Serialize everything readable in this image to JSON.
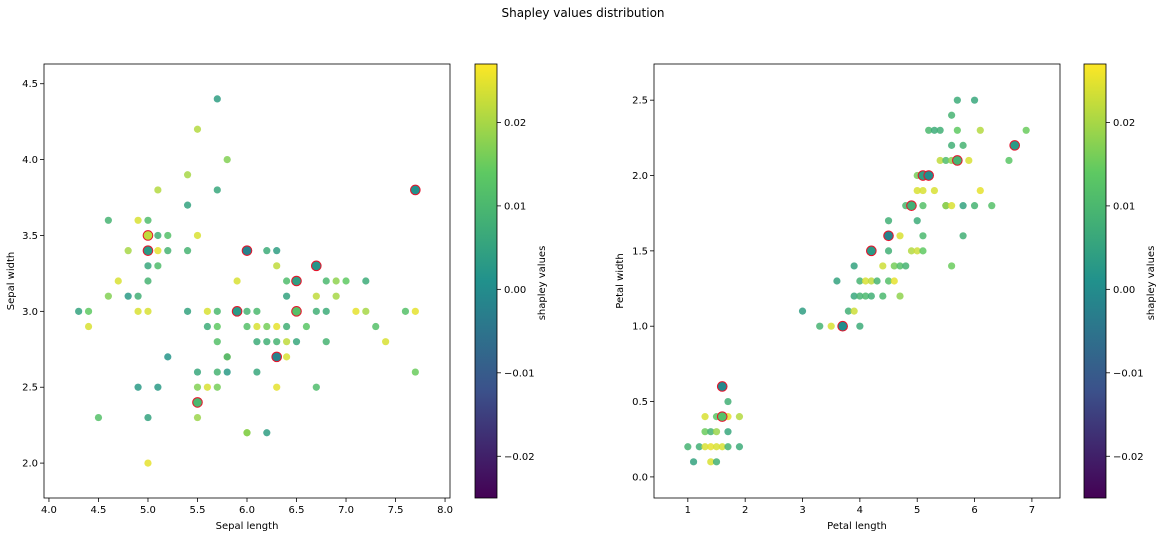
{
  "figure": {
    "suptitle": "Shapley values distribution"
  },
  "chart_data": [
    {
      "type": "scatter",
      "xlabel": "Sepal length",
      "ylabel": "Sepal width",
      "xlim": [
        3.95,
        8.05
      ],
      "ylim": [
        1.77,
        4.63
      ],
      "xticks": [
        "4.0",
        "4.5",
        "5.0",
        "5.5",
        "6.0",
        "6.5",
        "7.0",
        "7.5",
        "8.0"
      ],
      "yticks": [
        "2.0",
        "2.5",
        "3.0",
        "3.5",
        "4.0",
        "4.5"
      ],
      "colorbar": {
        "label": "shapley values",
        "range": [
          -0.025,
          0.027
        ],
        "ticks": [
          "0.02",
          "0.01",
          "0.00",
          "−0.01",
          "−0.02"
        ],
        "tick_values": [
          0.02,
          0.01,
          0.0,
          -0.01,
          -0.02
        ],
        "colormap": "viridis"
      },
      "points": [
        [
          4.3,
          3.0,
          0.005
        ],
        [
          4.4,
          3.0,
          0.014
        ],
        [
          4.4,
          2.9,
          0.024
        ],
        [
          4.5,
          2.3,
          0.012
        ],
        [
          4.6,
          3.6,
          0.009
        ],
        [
          4.6,
          3.1,
          0.017
        ],
        [
          4.7,
          3.2,
          0.024
        ],
        [
          4.8,
          3.4,
          0.02
        ],
        [
          4.8,
          3.1,
          0.003
        ],
        [
          4.9,
          3.0,
          0.024
        ],
        [
          4.9,
          3.6,
          0.024
        ],
        [
          4.9,
          3.1,
          0.008
        ],
        [
          4.9,
          2.5,
          0.003
        ],
        [
          5.0,
          3.6,
          0.011
        ],
        [
          5.0,
          3.3,
          0.006
        ],
        [
          5.0,
          3.2,
          0.009
        ],
        [
          5.0,
          3.0,
          0.024
        ],
        [
          5.0,
          2.3,
          0.005
        ],
        [
          5.0,
          2.0,
          0.025
        ],
        [
          5.1,
          3.8,
          0.021
        ],
        [
          5.1,
          3.5,
          0.008
        ],
        [
          5.1,
          3.4,
          0.025
        ],
        [
          5.1,
          3.3,
          0.011
        ],
        [
          5.1,
          2.5,
          0.003
        ],
        [
          5.2,
          3.5,
          0.012
        ],
        [
          5.2,
          3.4,
          0.009
        ],
        [
          5.2,
          2.7,
          0.002
        ],
        [
          5.4,
          3.9,
          0.02
        ],
        [
          5.4,
          3.7,
          0.005
        ],
        [
          5.4,
          3.4,
          0.009
        ],
        [
          5.4,
          3.0,
          0.005
        ],
        [
          5.5,
          4.2,
          0.021
        ],
        [
          5.5,
          3.5,
          0.024
        ],
        [
          5.5,
          2.6,
          0.006
        ],
        [
          5.5,
          2.5,
          0.017
        ],
        [
          5.5,
          2.3,
          0.019
        ],
        [
          5.6,
          3.0,
          0.024
        ],
        [
          5.6,
          2.9,
          0.007
        ],
        [
          5.6,
          2.5,
          0.024
        ],
        [
          5.7,
          4.4,
          0.004
        ],
        [
          5.7,
          3.8,
          0.006
        ],
        [
          5.7,
          3.0,
          0.01
        ],
        [
          5.7,
          2.9,
          0.014
        ],
        [
          5.7,
          2.8,
          0.012
        ],
        [
          5.7,
          2.6,
          0.009
        ],
        [
          5.7,
          2.5,
          0.016
        ],
        [
          5.8,
          4.0,
          0.017
        ],
        [
          5.8,
          2.7,
          0.024
        ],
        [
          5.8,
          2.7,
          0.009
        ],
        [
          5.8,
          2.6,
          0.003
        ],
        [
          5.9,
          3.2,
          0.024
        ],
        [
          6.0,
          3.0,
          0.009
        ],
        [
          6.0,
          2.9,
          0.012
        ],
        [
          6.0,
          2.2,
          0.021
        ],
        [
          6.0,
          2.2,
          0.017
        ],
        [
          6.1,
          3.0,
          0.01
        ],
        [
          6.1,
          2.9,
          0.024
        ],
        [
          6.1,
          2.8,
          0.007
        ],
        [
          6.1,
          2.6,
          0.006
        ],
        [
          6.2,
          3.4,
          0.007
        ],
        [
          6.2,
          2.9,
          0.016
        ],
        [
          6.2,
          2.8,
          0.008
        ],
        [
          6.2,
          2.2,
          0.004
        ],
        [
          6.3,
          3.4,
          0.004
        ],
        [
          6.3,
          3.3,
          0.022
        ],
        [
          6.3,
          2.9,
          0.025
        ],
        [
          6.3,
          2.8,
          0.009
        ],
        [
          6.3,
          2.5,
          0.025
        ],
        [
          6.4,
          3.2,
          0.011
        ],
        [
          6.4,
          3.1,
          0.005
        ],
        [
          6.4,
          2.9,
          0.008
        ],
        [
          6.4,
          2.8,
          0.022
        ],
        [
          6.4,
          2.7,
          0.024
        ],
        [
          6.5,
          3.0,
          0.012
        ],
        [
          6.5,
          2.8,
          0.006
        ],
        [
          6.6,
          2.9,
          0.013
        ],
        [
          6.7,
          3.1,
          0.022
        ],
        [
          6.7,
          3.0,
          0.008
        ],
        [
          6.7,
          2.5,
          0.011
        ],
        [
          6.8,
          3.2,
          0.01
        ],
        [
          6.8,
          3.0,
          0.007
        ],
        [
          6.8,
          2.8,
          0.009
        ],
        [
          6.9,
          3.2,
          0.018
        ],
        [
          6.9,
          3.1,
          0.02
        ],
        [
          7.0,
          3.2,
          0.014
        ],
        [
          7.1,
          3.0,
          0.025
        ],
        [
          7.2,
          3.2,
          0.007
        ],
        [
          7.2,
          3.0,
          0.02
        ],
        [
          7.3,
          2.9,
          0.012
        ],
        [
          7.4,
          2.8,
          0.024
        ],
        [
          7.6,
          3.0,
          0.012
        ],
        [
          7.7,
          3.0,
          0.025
        ],
        [
          7.7,
          2.6,
          0.015
        ],
        [
          7.7,
          3.8,
          0.018
        ]
      ],
      "highlighted": [
        [
          5.0,
          3.5,
          0.022
        ],
        [
          5.0,
          3.4,
          0.003
        ],
        [
          5.5,
          2.4,
          0.01
        ],
        [
          5.9,
          3.0,
          0.003
        ],
        [
          6.0,
          3.4,
          -0.002
        ],
        [
          6.3,
          2.7,
          -0.002
        ],
        [
          6.5,
          3.2,
          0.004
        ],
        [
          6.5,
          3.0,
          0.012
        ],
        [
          6.7,
          3.3,
          0.002
        ],
        [
          7.7,
          3.8,
          0.001
        ]
      ]
    },
    {
      "type": "scatter",
      "xlabel": "Petal length",
      "ylabel": "Petal width",
      "xlim": [
        0.41,
        7.49
      ],
      "ylim": [
        -0.14,
        2.74
      ],
      "xticks": [
        "1",
        "2",
        "3",
        "4",
        "5",
        "6",
        "7"
      ],
      "yticks": [
        "0.0",
        "0.5",
        "1.0",
        "1.5",
        "2.0",
        "2.5"
      ],
      "colorbar": {
        "label": "shapley values",
        "range": [
          -0.025,
          0.027
        ],
        "ticks": [
          "0.02",
          "0.01",
          "0.00",
          "−0.01",
          "−0.02"
        ],
        "tick_values": [
          0.02,
          0.01,
          0.0,
          -0.01,
          -0.02
        ],
        "colormap": "viridis"
      },
      "points": [
        [
          1.0,
          0.2,
          0.009
        ],
        [
          1.1,
          0.1,
          0.005
        ],
        [
          1.2,
          0.2,
          0.008
        ],
        [
          1.3,
          0.2,
          0.024
        ],
        [
          1.3,
          0.3,
          0.015
        ],
        [
          1.3,
          0.4,
          0.024
        ],
        [
          1.4,
          0.2,
          0.025
        ],
        [
          1.4,
          0.3,
          0.009
        ],
        [
          1.4,
          0.1,
          0.024
        ],
        [
          1.5,
          0.2,
          0.024
        ],
        [
          1.5,
          0.4,
          0.013
        ],
        [
          1.5,
          0.1,
          0.008
        ],
        [
          1.5,
          0.3,
          0.019
        ],
        [
          1.6,
          0.2,
          0.024
        ],
        [
          1.6,
          0.4,
          0.007
        ],
        [
          1.7,
          0.2,
          0.009
        ],
        [
          1.7,
          0.3,
          0.006
        ],
        [
          1.7,
          0.4,
          0.025
        ],
        [
          1.7,
          0.5,
          0.008
        ],
        [
          1.9,
          0.2,
          0.007
        ],
        [
          1.9,
          0.4,
          0.021
        ],
        [
          3.0,
          1.1,
          0.004
        ],
        [
          3.3,
          1.0,
          0.009
        ],
        [
          3.5,
          1.0,
          0.024
        ],
        [
          3.6,
          1.3,
          0.005
        ],
        [
          3.8,
          1.1,
          0.008
        ],
        [
          3.9,
          1.1,
          0.023
        ],
        [
          3.9,
          1.4,
          0.005
        ],
        [
          3.9,
          1.2,
          0.006
        ],
        [
          4.0,
          1.0,
          0.007
        ],
        [
          4.0,
          1.2,
          0.009
        ],
        [
          4.0,
          1.3,
          0.009
        ],
        [
          4.1,
          1.3,
          0.024
        ],
        [
          4.1,
          1.2,
          0.01
        ],
        [
          4.2,
          1.3,
          0.022
        ],
        [
          4.2,
          1.2,
          0.008
        ],
        [
          4.3,
          1.3,
          0.009
        ],
        [
          4.4,
          1.4,
          0.023
        ],
        [
          4.4,
          1.2,
          0.01
        ],
        [
          4.5,
          1.5,
          0.008
        ],
        [
          4.5,
          1.3,
          0.012
        ],
        [
          4.5,
          1.7,
          0.008
        ],
        [
          4.6,
          1.4,
          0.016
        ],
        [
          4.6,
          1.3,
          0.025
        ],
        [
          4.7,
          1.4,
          0.012
        ],
        [
          4.7,
          1.6,
          0.024
        ],
        [
          4.7,
          1.2,
          0.018
        ],
        [
          4.8,
          1.8,
          0.01
        ],
        [
          4.8,
          1.4,
          0.009
        ],
        [
          4.9,
          1.5,
          0.021
        ],
        [
          4.9,
          1.8,
          0.024
        ],
        [
          5.0,
          1.5,
          0.023
        ],
        [
          5.0,
          1.7,
          0.007
        ],
        [
          5.0,
          1.9,
          0.024
        ],
        [
          5.0,
          2.0,
          0.016
        ],
        [
          5.1,
          1.5,
          0.014
        ],
        [
          5.1,
          1.6,
          0.01
        ],
        [
          5.1,
          1.8,
          0.012
        ],
        [
          5.1,
          1.9,
          0.024
        ],
        [
          5.2,
          2.3,
          0.01
        ],
        [
          5.3,
          1.9,
          0.024
        ],
        [
          5.3,
          2.3,
          0.007
        ],
        [
          5.4,
          2.1,
          0.022
        ],
        [
          5.4,
          2.3,
          0.008
        ],
        [
          5.5,
          1.8,
          0.006
        ],
        [
          5.5,
          2.1,
          0.011
        ],
        [
          5.5,
          1.8,
          0.019
        ],
        [
          5.6,
          1.4,
          0.015
        ],
        [
          5.6,
          2.1,
          0.018
        ],
        [
          5.6,
          2.2,
          0.008
        ],
        [
          5.6,
          1.8,
          0.024
        ],
        [
          5.6,
          2.4,
          0.009
        ],
        [
          5.7,
          2.5,
          0.007
        ],
        [
          5.7,
          2.3,
          0.014
        ],
        [
          5.8,
          1.8,
          0.005
        ],
        [
          5.8,
          1.6,
          0.008
        ],
        [
          5.8,
          2.2,
          0.009
        ],
        [
          5.9,
          2.1,
          0.024
        ],
        [
          6.0,
          1.8,
          0.009
        ],
        [
          6.0,
          2.5,
          0.006
        ],
        [
          6.1,
          1.9,
          0.025
        ],
        [
          6.1,
          2.3,
          0.021
        ],
        [
          6.3,
          1.8,
          0.012
        ],
        [
          6.6,
          2.1,
          0.013
        ],
        [
          6.9,
          2.3,
          0.015
        ]
      ],
      "highlighted": [
        [
          1.6,
          0.6,
          -0.001
        ],
        [
          1.6,
          0.4,
          0.012
        ],
        [
          3.7,
          1.0,
          0.0
        ],
        [
          4.2,
          1.5,
          0.003
        ],
        [
          4.5,
          1.6,
          -0.002
        ],
        [
          4.9,
          1.8,
          0.008
        ],
        [
          5.1,
          2.0,
          0.004
        ],
        [
          5.2,
          2.0,
          0.0
        ],
        [
          5.7,
          2.1,
          0.009
        ],
        [
          6.7,
          2.2,
          0.003
        ]
      ]
    }
  ]
}
